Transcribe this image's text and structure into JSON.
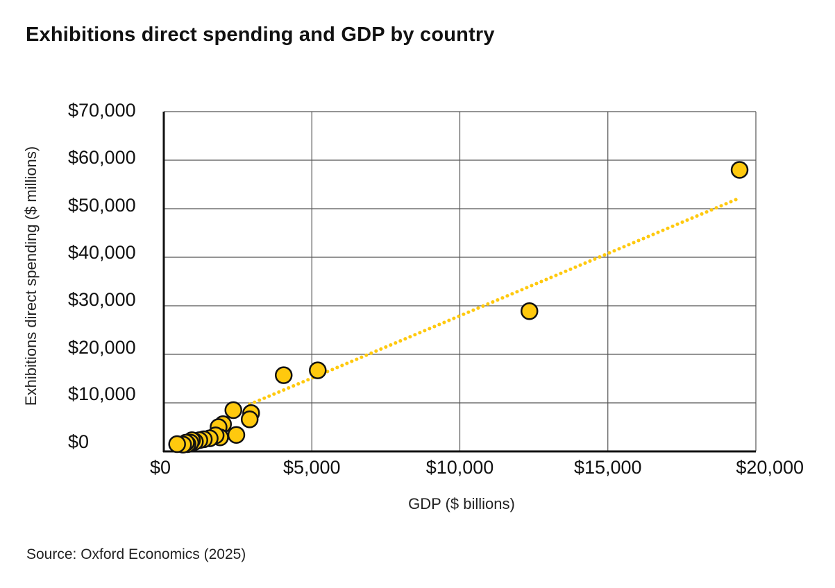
{
  "page": {
    "title": "Exhibitions direct spending and GDP by country",
    "source": "Source: Oxford Economics (2025)"
  },
  "colors": {
    "point_fill": "#FFC90E",
    "point_stroke": "#111111",
    "trend": "#FFC90E",
    "grid": "#555555",
    "axis": "#111111"
  },
  "chart_data": {
    "type": "scatter",
    "title": "Exhibitions direct spending and GDP by country",
    "xlabel": "GDP ($ billions)",
    "ylabel": "Exhibitions direct spending ($ millions)",
    "xlim": [
      0,
      20000
    ],
    "ylim": [
      0,
      70000
    ],
    "x_ticks": [
      0,
      5000,
      10000,
      15000,
      20000
    ],
    "x_tick_labels": [
      "$0",
      "$5,000",
      "$10,000",
      "$15,000",
      "$20,000"
    ],
    "y_ticks": [
      0,
      10000,
      20000,
      30000,
      40000,
      50000,
      60000,
      70000
    ],
    "y_tick_labels": [
      "$0",
      "$10,000",
      "$20,000",
      "$30,000",
      "$40,000",
      "$50,000",
      "$60,000",
      "$70,000"
    ],
    "grid": true,
    "points": [
      {
        "x": 19450,
        "y": 58000
      },
      {
        "x": 12350,
        "y": 28900
      },
      {
        "x": 5200,
        "y": 16700
      },
      {
        "x": 4050,
        "y": 15700
      },
      {
        "x": 2350,
        "y": 8500
      },
      {
        "x": 2950,
        "y": 7900
      },
      {
        "x": 2900,
        "y": 6600
      },
      {
        "x": 2000,
        "y": 5600
      },
      {
        "x": 1850,
        "y": 5000
      },
      {
        "x": 2450,
        "y": 3400
      },
      {
        "x": 1900,
        "y": 2900
      },
      {
        "x": 1750,
        "y": 3300
      },
      {
        "x": 1550,
        "y": 2700
      },
      {
        "x": 1350,
        "y": 2500
      },
      {
        "x": 1200,
        "y": 2300
      },
      {
        "x": 1050,
        "y": 2000
      },
      {
        "x": 950,
        "y": 2300
      },
      {
        "x": 900,
        "y": 1800
      },
      {
        "x": 800,
        "y": 1500
      },
      {
        "x": 750,
        "y": 1800
      },
      {
        "x": 650,
        "y": 1400
      },
      {
        "x": 450,
        "y": 1500
      }
    ],
    "trendline": {
      "style": "dotted",
      "x": [
        2900,
        19450
      ],
      "y": [
        9700,
        52200
      ]
    }
  }
}
